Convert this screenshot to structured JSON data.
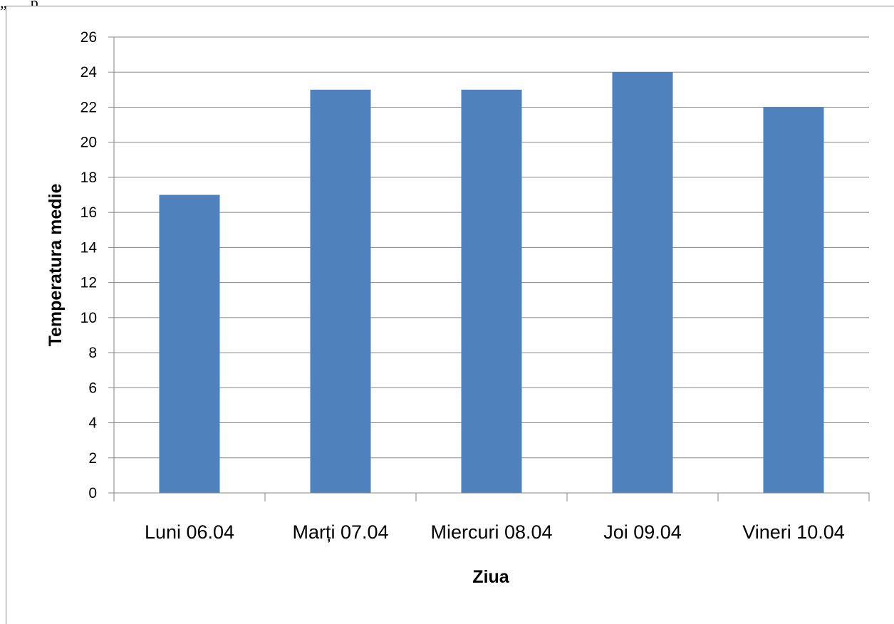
{
  "page_fragment": "„, .                   ,                 p",
  "chart_data": {
    "type": "bar",
    "categories": [
      "Luni 06.04",
      "Marți 07.04",
      "Miercuri 08.04",
      "Joi 09.04",
      "Vineri 10.04"
    ],
    "values": [
      17,
      23,
      23,
      24,
      22
    ],
    "title": "",
    "xlabel": "Ziua",
    "ylabel": "Temperatura medie",
    "ylim": [
      0,
      26
    ],
    "ytick_step": 2,
    "grid": true,
    "legend": "none",
    "colors": {
      "bar": "#4f81bd",
      "grid": "#878787",
      "axis": "#878787"
    }
  }
}
